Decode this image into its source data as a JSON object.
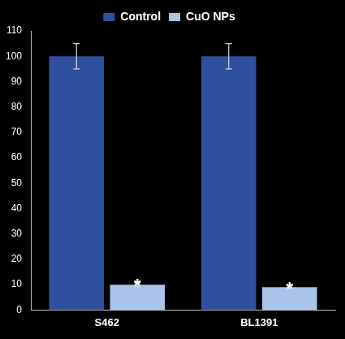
{
  "chart_data": {
    "type": "bar",
    "categories": [
      "S462",
      "BL1391"
    ],
    "series": [
      {
        "name": "Control",
        "color": "#2f4f9f",
        "values": [
          100,
          100
        ],
        "errors": [
          5,
          5
        ]
      },
      {
        "name": "CuO NPs",
        "color": "#a9c3ea",
        "values": [
          10,
          9
        ],
        "errors": [
          0.8,
          0.5
        ]
      }
    ],
    "annotations": [
      {
        "text": "*",
        "series": "CuO NPs",
        "category": "S462"
      },
      {
        "text": "*",
        "series": "CuO NPs",
        "category": "BL1391"
      }
    ],
    "ylim": [
      0,
      110
    ],
    "yticks": [
      0,
      10,
      20,
      30,
      40,
      50,
      60,
      70,
      80,
      90,
      100,
      110
    ],
    "grid": false,
    "legend": "top"
  }
}
